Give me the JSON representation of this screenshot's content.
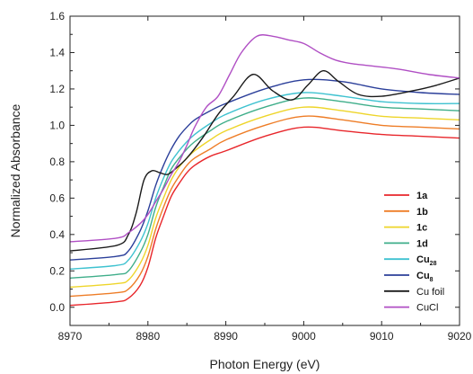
{
  "chart_data": {
    "type": "line",
    "xlabel": "Photon Energy (eV)",
    "ylabel": "Normalized Absorbance",
    "xlim": [
      8970,
      9020
    ],
    "ylim": [
      -0.1,
      1.6
    ],
    "xticks": [
      "8970",
      "8980",
      "8990",
      "9000",
      "9010",
      "9020"
    ],
    "yticks": [
      "0.0",
      "0.2",
      "0.4",
      "0.6",
      "0.8",
      "1.0",
      "1.2",
      "1.4",
      "1.6"
    ],
    "grid": false,
    "legend_position": "bottom-right",
    "series": [
      {
        "name": "1a",
        "sub": "",
        "bold": true,
        "color": "#e8262b",
        "x": [
          8970,
          8976,
          8977.5,
          8979,
          8980,
          8981,
          8982,
          8983,
          8984,
          8985,
          8986,
          8988,
          8990,
          8995,
          9000,
          9005,
          9010,
          9015,
          9020
        ],
        "y": [
          0.01,
          0.03,
          0.05,
          0.12,
          0.22,
          0.38,
          0.5,
          0.61,
          0.68,
          0.74,
          0.78,
          0.83,
          0.86,
          0.94,
          0.99,
          0.97,
          0.95,
          0.94,
          0.93
        ]
      },
      {
        "name": "1b",
        "sub": "",
        "bold": true,
        "color": "#ee7d27",
        "x": [
          8970,
          8976,
          8977.5,
          8979,
          8980,
          8981,
          8982,
          8983,
          8984,
          8985,
          8986,
          8988,
          8990,
          8995,
          9000,
          9005,
          9010,
          9015,
          9020
        ],
        "y": [
          0.06,
          0.08,
          0.1,
          0.18,
          0.28,
          0.43,
          0.55,
          0.65,
          0.72,
          0.78,
          0.82,
          0.87,
          0.92,
          1.0,
          1.05,
          1.03,
          1.0,
          0.99,
          0.98
        ]
      },
      {
        "name": "1c",
        "sub": "",
        "bold": true,
        "color": "#eed52a",
        "x": [
          8970,
          8976,
          8977.5,
          8979,
          8980,
          8981,
          8982,
          8983,
          8984,
          8985,
          8986,
          8988,
          8990,
          8995,
          9000,
          9005,
          9010,
          9015,
          9020
        ],
        "y": [
          0.11,
          0.13,
          0.15,
          0.24,
          0.34,
          0.49,
          0.6,
          0.7,
          0.77,
          0.82,
          0.86,
          0.92,
          0.97,
          1.05,
          1.1,
          1.08,
          1.05,
          1.04,
          1.03
        ]
      },
      {
        "name": "1d",
        "sub": "",
        "bold": true,
        "color": "#3fae8a",
        "x": [
          8970,
          8976,
          8977.5,
          8979,
          8980,
          8981,
          8982,
          8983,
          8984,
          8985,
          8986,
          8988,
          8990,
          8995,
          9000,
          9005,
          9010,
          9015,
          9020
        ],
        "y": [
          0.16,
          0.18,
          0.2,
          0.3,
          0.4,
          0.55,
          0.66,
          0.76,
          0.82,
          0.87,
          0.91,
          0.97,
          1.02,
          1.1,
          1.15,
          1.13,
          1.1,
          1.09,
          1.08
        ]
      },
      {
        "name": "Cu",
        "sub": "28",
        "bold": true,
        "color": "#3ec2d0",
        "x": [
          8970,
          8976,
          8977.5,
          8979,
          8980,
          8981,
          8982,
          8983,
          8984,
          8985,
          8986,
          8988,
          8990,
          8995,
          9000,
          9005,
          9010,
          9015,
          9020
        ],
        "y": [
          0.21,
          0.23,
          0.26,
          0.36,
          0.46,
          0.6,
          0.71,
          0.8,
          0.86,
          0.91,
          0.95,
          1.01,
          1.06,
          1.14,
          1.18,
          1.16,
          1.13,
          1.12,
          1.12
        ]
      },
      {
        "name": "Cu",
        "sub": "8",
        "bold": true,
        "color": "#2b3f9a",
        "x": [
          8970,
          8976,
          8977.5,
          8979,
          8980,
          8981,
          8982,
          8983,
          8984,
          8985,
          8986,
          8988,
          8990,
          8995,
          9000,
          9005,
          9010,
          9015,
          9020
        ],
        "y": [
          0.26,
          0.28,
          0.31,
          0.42,
          0.53,
          0.67,
          0.78,
          0.87,
          0.94,
          0.99,
          1.03,
          1.08,
          1.12,
          1.2,
          1.25,
          1.24,
          1.2,
          1.18,
          1.17
        ]
      },
      {
        "name": "Cu foil",
        "sub": "",
        "bold": false,
        "color": "#1a1a1a",
        "x": [
          8970,
          8976,
          8977.5,
          8978.5,
          8979.5,
          8980.5,
          8981.5,
          8982.5,
          8983.5,
          8985,
          8987,
          8989,
          8991,
          8993.5,
          8996,
          8998.5,
          9000.5,
          9002.5,
          9004.5,
          9007,
          9010,
          9014,
          9017,
          9020
        ],
        "y": [
          0.31,
          0.34,
          0.4,
          0.52,
          0.7,
          0.75,
          0.74,
          0.73,
          0.76,
          0.82,
          0.93,
          1.06,
          1.16,
          1.28,
          1.19,
          1.14,
          1.22,
          1.3,
          1.24,
          1.17,
          1.16,
          1.19,
          1.22,
          1.26
        ]
      },
      {
        "name": "CuCl",
        "sub": "",
        "bold": false,
        "color": "#b04fc4",
        "x": [
          8970,
          8976,
          8977.5,
          8979,
          8980,
          8981,
          8982,
          8983,
          8984,
          8985,
          8986,
          8987.5,
          8989,
          8990.5,
          8992,
          8994,
          8996,
          8998,
          9000,
          9002,
          9004,
          9006,
          9008,
          9012,
          9016,
          9020
        ],
        "y": [
          0.36,
          0.38,
          0.41,
          0.46,
          0.51,
          0.58,
          0.65,
          0.73,
          0.8,
          0.89,
          0.99,
          1.1,
          1.16,
          1.28,
          1.4,
          1.49,
          1.49,
          1.47,
          1.45,
          1.4,
          1.36,
          1.34,
          1.33,
          1.31,
          1.28,
          1.26
        ]
      }
    ]
  }
}
